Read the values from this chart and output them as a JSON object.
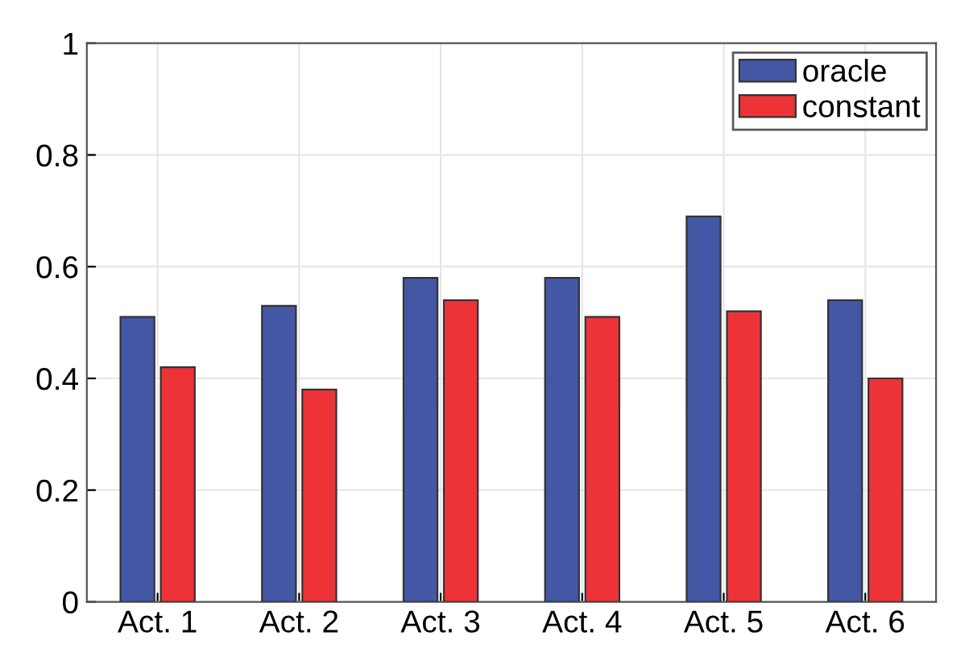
{
  "chart_data": {
    "type": "bar",
    "categories": [
      "Act. 1",
      "Act. 2",
      "Act. 3",
      "Act. 4",
      "Act. 5",
      "Act. 6"
    ],
    "series": [
      {
        "name": "oracle",
        "color": "#4457a5",
        "values": [
          0.51,
          0.53,
          0.58,
          0.58,
          0.69,
          0.54
        ]
      },
      {
        "name": "constant",
        "color": "#ee3338",
        "values": [
          0.42,
          0.38,
          0.54,
          0.51,
          0.52,
          0.4
        ]
      }
    ],
    "ylim": [
      0,
      1
    ],
    "yticks": [
      0,
      0.2,
      0.4,
      0.6,
      0.8,
      1
    ],
    "grid": true,
    "legend": "top right"
  }
}
